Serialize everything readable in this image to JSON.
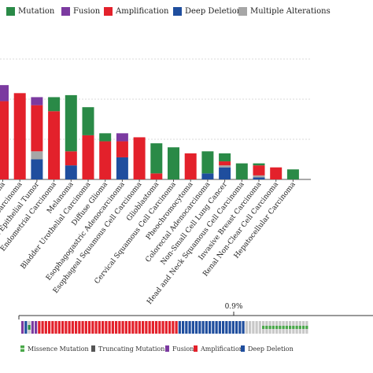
{
  "legend": {
    "items": [
      {
        "key": "mutation",
        "label": "Mutation",
        "color": "#2a8a47"
      },
      {
        "key": "fusion",
        "label": "Fusion",
        "color": "#7b3aa0"
      },
      {
        "key": "amplification",
        "label": "Amplification",
        "color": "#e3212b"
      },
      {
        "key": "deep_deletion",
        "label": "Deep Deletion",
        "color": "#1f4e9e"
      },
      {
        "key": "multiple",
        "label": "Multiple Alterations",
        "color": "#a6a6a6"
      }
    ]
  },
  "chart_data": [
    {
      "type": "bar",
      "stacked": true,
      "grid": true,
      "categories": [
        "Carcinoma",
        "Adenocarcinoma",
        "Ovarian Epithelial Tumor",
        "Endometrial Carcinoma",
        "Melanoma",
        "Bladder Urothelial Carcinoma",
        "Diffuse Glioma",
        "Esophagogastric Adenocarcinoma",
        "Esophageal Squamous Cell Carcinoma",
        "Glioblastoma",
        "Cervical Squamous Cell Carcinoma",
        "Pheochromocytoma",
        "Colorectal Adenocarcinoma",
        "Non-Small Cell Lung Cancer",
        "Head and Neck Squamous Cell Carcinoma",
        "Invasive Breast Carcinoma",
        "Renal Non-Clear Cell Carcinoma",
        "Hepatocellular Carcinoma"
      ],
      "series": [
        {
          "key": "deep_deletion",
          "values": [
            0,
            0,
            1.0,
            0,
            0.7,
            0,
            0,
            1.1,
            0,
            0,
            0,
            0,
            0.3,
            0.6,
            0,
            0.1,
            0,
            0
          ]
        },
        {
          "key": "multiple",
          "values": [
            0,
            0,
            0.4,
            0,
            0,
            0,
            0,
            0,
            0,
            0,
            0,
            0,
            0,
            0.1,
            0,
            0.1,
            0,
            0
          ]
        },
        {
          "key": "amplification",
          "values": [
            3.9,
            4.3,
            2.3,
            3.4,
            0.7,
            2.2,
            1.9,
            0.8,
            2.1,
            0.3,
            0,
            1.3,
            0,
            0.2,
            0,
            0.5,
            0.6,
            0
          ]
        },
        {
          "key": "mutation",
          "values": [
            0,
            0,
            0,
            0.7,
            2.8,
            1.4,
            0.4,
            0,
            0,
            1.5,
            1.6,
            0,
            1.1,
            0.4,
            0.8,
            0.1,
            0,
            0.5
          ]
        },
        {
          "key": "fusion",
          "values": [
            0.8,
            0,
            0.4,
            0,
            0,
            0,
            0,
            0.4,
            0,
            0,
            0,
            0,
            0,
            0,
            0,
            0,
            0,
            0
          ]
        }
      ],
      "ylim": [
        0,
        6
      ]
    },
    {
      "type": "oncoprint",
      "percent_label": "0.9%",
      "segments": [
        {
          "kind": "fusion",
          "count": 1
        },
        {
          "kind": "deep_deletion",
          "count": 1
        },
        {
          "kind": "mutation",
          "count": 1
        },
        {
          "kind": "fusion",
          "count": 2
        },
        {
          "kind": "amplification",
          "count": 42
        },
        {
          "kind": "deep_deletion",
          "count": 20
        },
        {
          "kind": "gray",
          "count": 5
        },
        {
          "kind": "gray_mutation",
          "count": 14
        }
      ]
    }
  ],
  "bottom_legend": {
    "items": [
      {
        "key": "missense",
        "label": "Missence Mutation",
        "color": "#4aa84a"
      },
      {
        "key": "truncating",
        "label": "Truncating Mutation",
        "color": "#555555"
      },
      {
        "key": "fusion",
        "label": "Fusion",
        "color": "#7b3aa0"
      },
      {
        "key": "amplification",
        "label": "Amplification",
        "color": "#e3212b"
      },
      {
        "key": "deep_deletion",
        "label": "Deep Deletion",
        "color": "#1f4e9e"
      }
    ]
  }
}
